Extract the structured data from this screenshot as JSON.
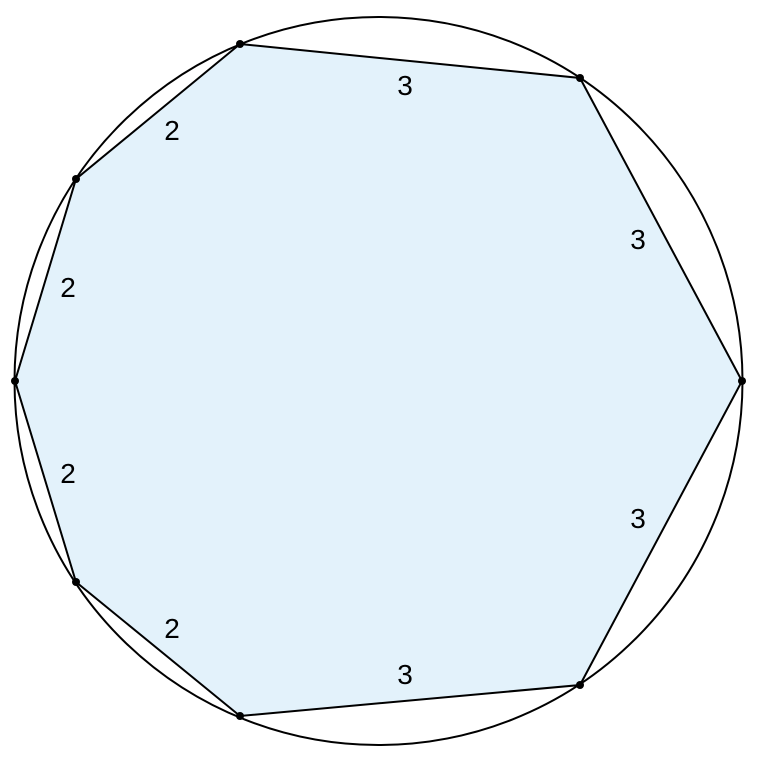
{
  "colors": {
    "polygon_fill": "#e3f2fb",
    "stroke": "#000000",
    "background": "#ffffff"
  },
  "edge_labels": {
    "top": "3",
    "upper_right": "3",
    "lower_right": "3",
    "bottom": "3",
    "lower_left_bottom": "2",
    "lower_left_side": "2",
    "upper_left_side": "2",
    "upper_left_top": "2"
  }
}
